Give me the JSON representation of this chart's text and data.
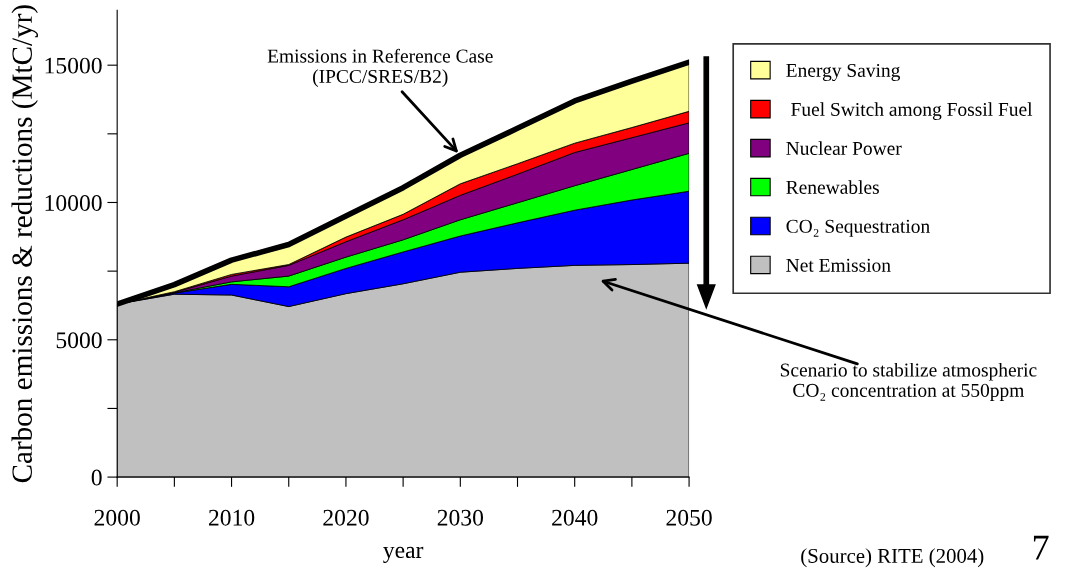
{
  "chart_data": {
    "type": "area",
    "stacked": true,
    "xlabel": "year",
    "ylabel": "Carbon emissions & reductions (MtC/yr)",
    "x": [
      2000,
      2005,
      2010,
      2015,
      2020,
      2025,
      2030,
      2035,
      2040,
      2045,
      2050
    ],
    "xlim": [
      2000,
      2050
    ],
    "xticks": [
      2000,
      {
        "value": 2005,
        "label": null
      },
      2010,
      {
        "value": 2015,
        "label": null
      },
      2020,
      {
        "value": 2025,
        "label": null
      },
      2030,
      {
        "value": 2035,
        "label": null
      },
      2040,
      {
        "value": 2045,
        "label": null
      },
      2050
    ],
    "ylim": [
      0,
      17000
    ],
    "yticks": [
      0,
      {
        "value": 2500,
        "label": null
      },
      5000,
      {
        "value": 7500,
        "label": null
      },
      10000,
      {
        "value": 12500,
        "label": null
      },
      15000
    ],
    "series": [
      {
        "name": "Net Emission",
        "color": "#c0c0c0",
        "values": [
          6300,
          6660,
          6630,
          6210,
          6680,
          7040,
          7460,
          7600,
          7710,
          7740,
          7790
        ]
      },
      {
        "name": "CO₂ Sequestration",
        "color": "#0000ff",
        "values": [
          0,
          40,
          390,
          720,
          920,
          1160,
          1320,
          1660,
          2010,
          2350,
          2620
        ]
      },
      {
        "name": "Renewables",
        "color": "#00ff00",
        "values": [
          0,
          10,
          90,
          390,
          410,
          440,
          590,
          730,
          890,
          1110,
          1380
        ]
      },
      {
        "name": "Nuclear Power",
        "color": "#800080",
        "values": [
          0,
          20,
          210,
          390,
          560,
          730,
          890,
          1040,
          1210,
          1160,
          1110
        ]
      },
      {
        "name": " Fuel Switch among Fossil Fuel",
        "color": "#ff0000",
        "values": [
          0,
          20,
          60,
          30,
          170,
          200,
          420,
          380,
          340,
          370,
          420
        ]
      },
      {
        "name": "Energy Saving",
        "color": "#ffff99",
        "values": [
          0,
          260,
          520,
          730,
          770,
          970,
          1040,
          1290,
          1540,
          1690,
          1790
        ]
      }
    ],
    "legend": "right",
    "grid": false,
    "annotations": [
      {
        "text": "Emissions in Reference Case\n(IPCC/SRES/B2)",
        "x": 2030,
        "y": 11720
      },
      "Scenario to stabilize atmospheric\nCO₂ concentration at 550ppm",
      "(Source) RITE (2004)",
      "7"
    ]
  }
}
